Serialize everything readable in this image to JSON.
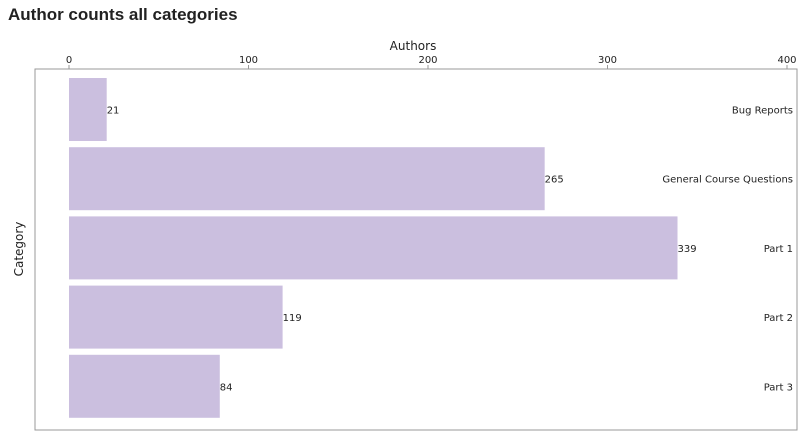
{
  "page": {
    "title": "Author counts all categories"
  },
  "chart_data": {
    "type": "bar",
    "orientation": "horizontal",
    "title": "Author counts all categories",
    "xlabel": "Authors",
    "ylabel": "Category",
    "x_axis_position": "top",
    "categories": [
      "Bug Reports",
      "General Course Questions",
      "Part 1",
      "Part 2",
      "Part 3"
    ],
    "values": [
      21,
      265,
      339,
      119,
      84
    ],
    "data_labels": [
      "21",
      "265",
      "339",
      "119",
      "84"
    ],
    "xlim": [
      0,
      400
    ],
    "x_ticks": [
      0,
      100,
      200,
      300,
      400
    ],
    "x_tick_labels": [
      "0",
      "100",
      "200",
      "300",
      "400"
    ],
    "grid": false,
    "legend": "none",
    "bar_color": "#cbbfdf",
    "frame_color": "#999999"
  }
}
